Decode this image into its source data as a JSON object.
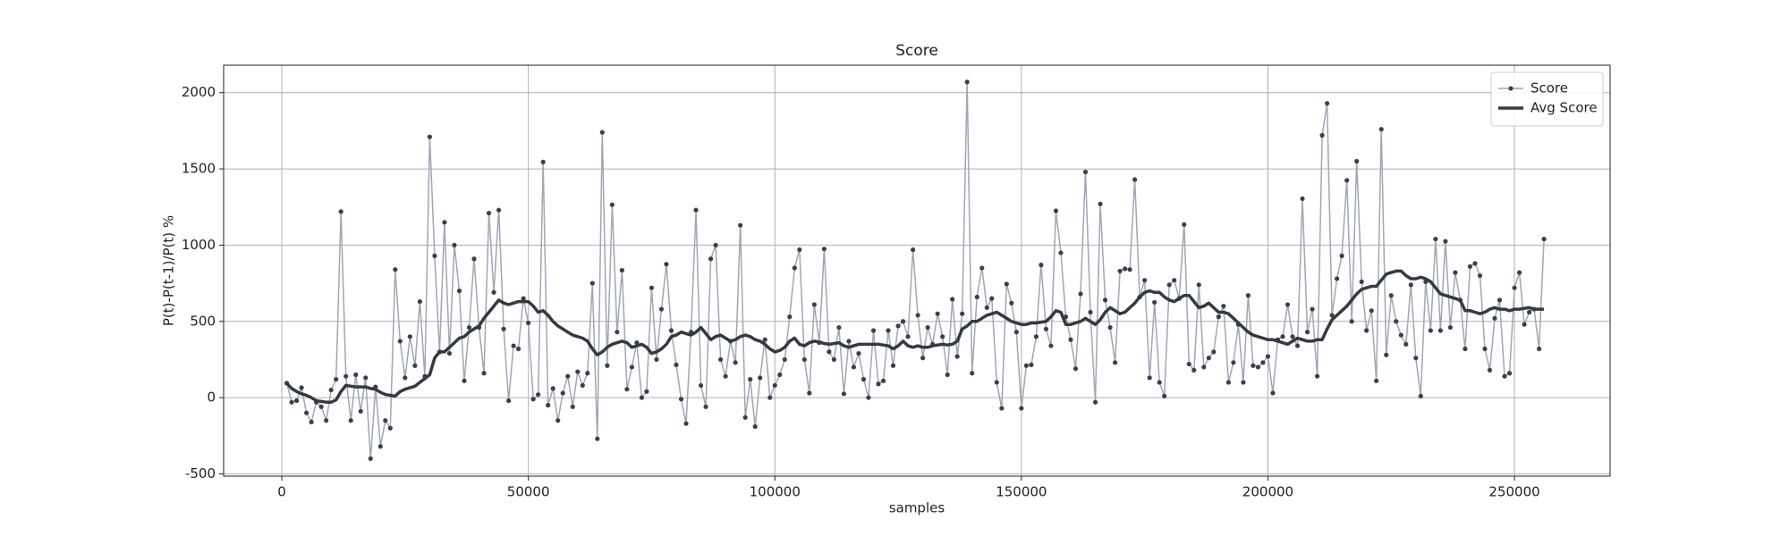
{
  "chart_data": {
    "type": "line",
    "title": "Score",
    "x_label": "samples",
    "y_label": "P(t)-P(t-1)/P(t) %",
    "x": [
      1000,
      2000,
      3000,
      4000,
      5000,
      6000,
      7000,
      8000,
      9000,
      10000,
      11000,
      12000,
      13000,
      14000,
      15000,
      16000,
      17000,
      18000,
      19000,
      20000,
      21000,
      22000,
      23000,
      24000,
      25000,
      26000,
      27000,
      28000,
      29000,
      30000,
      31000,
      32000,
      33000,
      34000,
      35000,
      36000,
      37000,
      38000,
      39000,
      40000,
      41000,
      42000,
      43000,
      44000,
      45000,
      46000,
      47000,
      48000,
      49000,
      50000,
      51000,
      52000,
      53000,
      54000,
      55000,
      56000,
      57000,
      58000,
      59000,
      60000,
      61000,
      62000,
      63000,
      64000,
      65000,
      66000,
      67000,
      68000,
      69000,
      70000,
      71000,
      72000,
      73000,
      74000,
      75000,
      76000,
      77000,
      78000,
      79000,
      80000,
      81000,
      82000,
      83000,
      84000,
      85000,
      86000,
      87000,
      88000,
      89000,
      90000,
      91000,
      92000,
      93000,
      94000,
      95000,
      96000,
      97000,
      98000,
      99000,
      100000,
      101000,
      102000,
      103000,
      104000,
      105000,
      106000,
      107000,
      108000,
      109000,
      110000,
      111000,
      112000,
      113000,
      114000,
      115000,
      116000,
      117000,
      118000,
      119000,
      120000,
      121000,
      122000,
      123000,
      124000,
      125000,
      126000,
      127000,
      128000,
      129000,
      130000,
      131000,
      132000,
      133000,
      134000,
      135000,
      136000,
      137000,
      138000,
      139000,
      140000,
      141000,
      142000,
      143000,
      144000,
      145000,
      146000,
      147000,
      148000,
      149000,
      150000,
      151000,
      152000,
      153000,
      154000,
      155000,
      156000,
      157000,
      158000,
      159000,
      160000,
      161000,
      162000,
      163000,
      164000,
      165000,
      166000,
      167000,
      168000,
      169000,
      170000,
      171000,
      172000,
      173000,
      174000,
      175000,
      176000,
      177000,
      178000,
      179000,
      180000,
      181000,
      182000,
      183000,
      184000,
      185000,
      186000,
      187000,
      188000,
      189000,
      190000,
      191000,
      192000,
      193000,
      194000,
      195000,
      196000,
      197000,
      198000,
      199000,
      200000,
      201000,
      202000,
      203000,
      204000,
      205000,
      206000,
      207000,
      208000,
      209000,
      210000,
      211000,
      212000,
      213000,
      214000,
      215000,
      216000,
      217000,
      218000,
      219000,
      220000,
      221000,
      222000,
      223000,
      224000,
      225000,
      226000,
      227000,
      228000,
      229000,
      230000,
      231000,
      232000,
      233000,
      234000,
      235000,
      236000,
      237000,
      238000,
      239000,
      240000,
      241000,
      242000,
      243000,
      244000,
      245000,
      246000,
      247000,
      248000,
      249000,
      250000,
      251000,
      252000,
      253000,
      254000,
      255000,
      256000
    ],
    "series": [
      {
        "name": "Score",
        "color": "#a0a6b4",
        "marker_color": "#3a3f4a",
        "marker": "o",
        "linewidth": 1.5,
        "values": [
          95,
          -30,
          -20,
          65,
          -100,
          -160,
          -30,
          -60,
          -150,
          50,
          120,
          1220,
          140,
          -150,
          150,
          -90,
          130,
          -400,
          70,
          -320,
          -150,
          -200,
          840,
          370,
          130,
          400,
          210,
          630,
          140,
          1710,
          930,
          300,
          1150,
          290,
          1000,
          700,
          110,
          460,
          910,
          460,
          160,
          1210,
          690,
          1230,
          450,
          -20,
          340,
          320,
          650,
          490,
          -10,
          20,
          1545,
          -50,
          60,
          -150,
          30,
          140,
          -60,
          170,
          80,
          160,
          750,
          -270,
          1740,
          210,
          1265,
          430,
          835,
          55,
          200,
          360,
          0,
          40,
          720,
          250,
          580,
          875,
          440,
          215,
          -10,
          -170,
          430,
          1230,
          80,
          -60,
          910,
          1000,
          250,
          140,
          370,
          230,
          1130,
          -130,
          120,
          -190,
          130,
          380,
          0,
          80,
          150,
          250,
          530,
          850,
          970,
          250,
          30,
          610,
          360,
          975,
          300,
          250,
          460,
          25,
          370,
          200,
          290,
          120,
          0,
          440,
          90,
          110,
          440,
          210,
          470,
          500,
          400,
          970,
          540,
          260,
          460,
          350,
          550,
          400,
          150,
          645,
          270,
          550,
          2070,
          160,
          660,
          850,
          590,
          650,
          100,
          -70,
          745,
          620,
          430,
          -70,
          210,
          215,
          400,
          870,
          450,
          340,
          1225,
          950,
          530,
          380,
          190,
          680,
          1480,
          560,
          -30,
          1270,
          640,
          460,
          230,
          830,
          845,
          840,
          1430,
          660,
          770,
          130,
          625,
          100,
          10,
          740,
          770,
          650,
          1135,
          220,
          180,
          740,
          200,
          260,
          300,
          530,
          600,
          100,
          230,
          480,
          100,
          670,
          210,
          200,
          230,
          270,
          30,
          380,
          400,
          610,
          400,
          340,
          1305,
          430,
          580,
          140,
          1720,
          1930,
          540,
          780,
          930,
          1425,
          500,
          1550,
          760,
          440,
          570,
          110,
          1760,
          280,
          670,
          500,
          410,
          350,
          740,
          260,
          10,
          760,
          440,
          1040,
          440,
          1025,
          460,
          820,
          640,
          320,
          860,
          880,
          800,
          320,
          180,
          520,
          640,
          140,
          160,
          720,
          820,
          480,
          560,
          580,
          320,
          1040
        ]
      },
      {
        "name": "Avg Score",
        "color": "#343a40",
        "linewidth": 3.5,
        "values": [
          95,
          60,
          40,
          25,
          15,
          0,
          -20,
          -25,
          -30,
          -30,
          -15,
          40,
          80,
          75,
          70,
          70,
          70,
          60,
          55,
          35,
          20,
          15,
          10,
          40,
          55,
          65,
          75,
          100,
          125,
          150,
          260,
          300,
          300,
          330,
          360,
          390,
          400,
          430,
          450,
          470,
          520,
          560,
          600,
          640,
          620,
          610,
          620,
          630,
          630,
          630,
          600,
          560,
          570,
          540,
          500,
          470,
          450,
          430,
          410,
          400,
          390,
          370,
          320,
          280,
          300,
          330,
          350,
          360,
          370,
          360,
          330,
          340,
          350,
          330,
          290,
          300,
          320,
          350,
          400,
          410,
          430,
          420,
          410,
          430,
          460,
          420,
          380,
          400,
          410,
          390,
          370,
          380,
          400,
          410,
          400,
          380,
          370,
          350,
          320,
          300,
          310,
          330,
          370,
          390,
          350,
          340,
          360,
          370,
          365,
          355,
          350,
          355,
          360,
          340,
          330,
          340,
          350,
          350,
          350,
          350,
          350,
          345,
          340,
          320,
          340,
          370,
          340,
          330,
          340,
          330,
          330,
          340,
          345,
          350,
          345,
          350,
          370,
          450,
          470,
          500,
          500,
          520,
          540,
          550,
          560,
          540,
          520,
          500,
          490,
          480,
          480,
          490,
          490,
          495,
          500,
          530,
          570,
          560,
          480,
          480,
          490,
          500,
          520,
          500,
          480,
          510,
          560,
          590,
          570,
          550,
          560,
          590,
          620,
          660,
          690,
          700,
          690,
          690,
          660,
          640,
          630,
          650,
          670,
          670,
          630,
          590,
          600,
          620,
          590,
          560,
          560,
          550,
          520,
          490,
          460,
          430,
          410,
          400,
          390,
          380,
          380,
          370,
          360,
          350,
          370,
          390,
          380,
          370,
          370,
          380,
          380,
          450,
          510,
          540,
          570,
          600,
          640,
          680,
          710,
          720,
          730,
          730,
          770,
          810,
          820,
          830,
          830,
          800,
          780,
          780,
          790,
          780,
          760,
          720,
          680,
          670,
          660,
          650,
          640,
          570,
          570,
          560,
          550,
          560,
          580,
          590,
          580,
          580,
          570,
          580,
          580,
          585,
          590,
          580,
          580,
          580
        ]
      }
    ],
    "xlim": [
      -11800,
      269400
    ],
    "ylim": [
      -515,
      2180
    ],
    "xticks": [
      0,
      50000,
      100000,
      150000,
      200000,
      250000
    ],
    "yticks": [
      -500,
      0,
      500,
      1000,
      1500,
      2000
    ],
    "grid": true,
    "legend": "upper right"
  }
}
